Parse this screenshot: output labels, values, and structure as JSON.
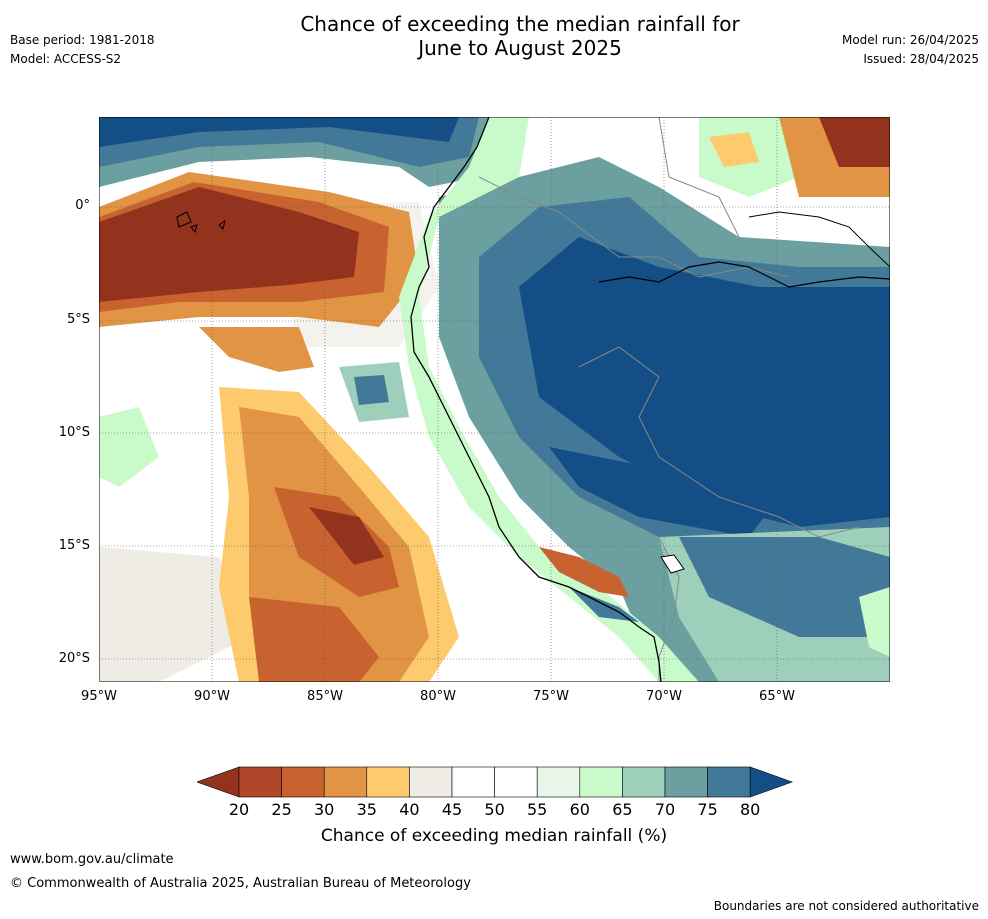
{
  "header": {
    "base_period": "Base period: 1981-2018",
    "model": "Model: ACCESS-S2",
    "title_line1": "Chance of exceeding the median rainfall for",
    "title_line2": "June to August 2025",
    "model_run": "Model run: 26/04/2025",
    "issued": "Issued: 28/04/2025"
  },
  "map": {
    "latitude_labels": [
      "0°",
      "5°S",
      "10°S",
      "15°S",
      "20°S"
    ],
    "longitude_labels": [
      "95°W",
      "90°W",
      "85°W",
      "80°W",
      "75°W",
      "70°W",
      "65°W"
    ]
  },
  "legend": {
    "ticks": [
      "20",
      "25",
      "30",
      "35",
      "40",
      "45",
      "50",
      "55",
      "60",
      "65",
      "70",
      "75",
      "80"
    ],
    "label": "Chance of exceeding median rainfall (%)",
    "colors": [
      "#93331d",
      "#b0472b",
      "#c8622f",
      "#e09444",
      "#fdcb6e",
      "#efece6",
      "#ffffff",
      "#ffffff",
      "#e9f5e9",
      "#c9fbca",
      "#9ecfba",
      "#6ca0a0",
      "#427898",
      "#144e87"
    ]
  },
  "footer": {
    "website": "www.bom.gov.au/climate",
    "copyright": "© Commonwealth of Australia 2025, Australian Bureau of Meteorology",
    "disclaimer": "Boundaries are not considered authoritative"
  }
}
